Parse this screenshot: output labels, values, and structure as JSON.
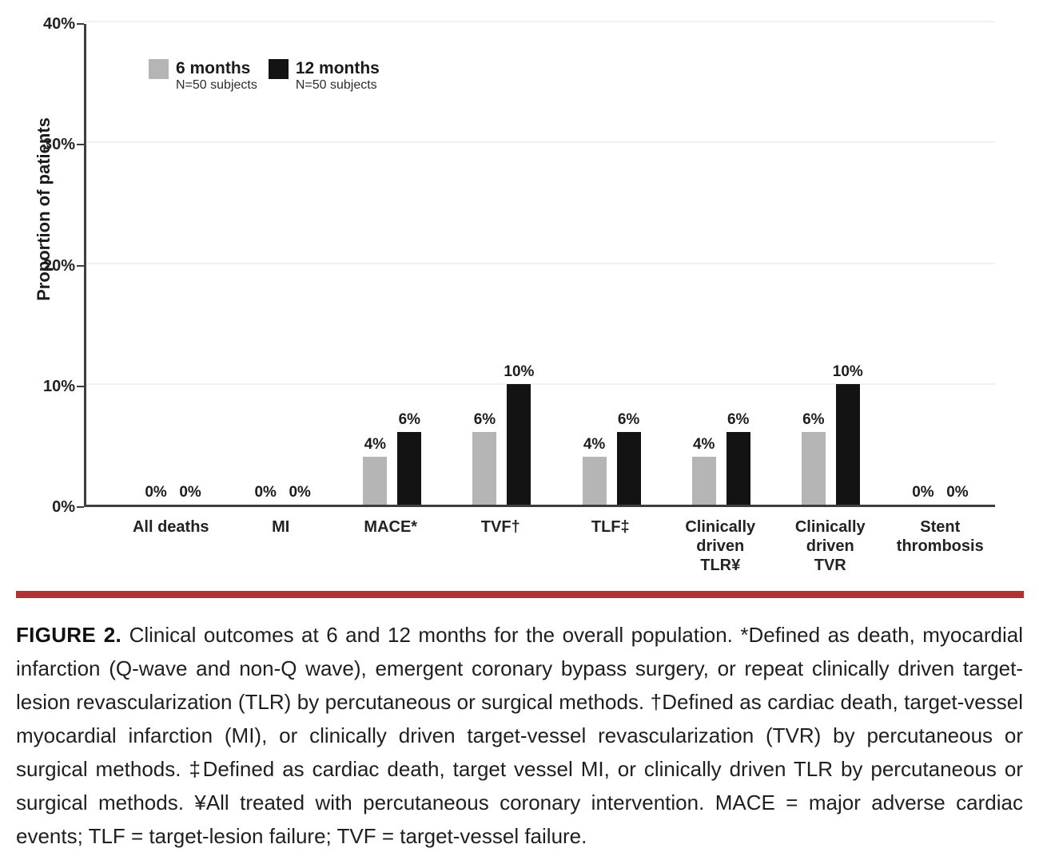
{
  "figure": {
    "caption_label": "FIGURE 2.",
    "caption_text": "Clinical outcomes at 6 and 12 months for the overall population. *Defined as death, myocardial infarction (Q-wave and non-Q wave), emergent coronary bypass surgery, or repeat clinically driven target-lesion revascularization (TLR) by percutaneous or surgical methods. †Defined as cardiac death, target-vessel myocardial infarction (MI), or clinically driven target-vessel revascularization (TVR) by percutaneous or surgical methods. ‡Defined as cardiac death, target vessel MI, or clinically driven TLR by percutaneous or surgical methods. ¥All treated with percutaneous coronary intervention. MACE = major adverse cardiac events; TLF = target-lesion failure; TVF = target-vessel failure.",
    "divider_color": "#b03136"
  },
  "chart_data": {
    "type": "bar",
    "title": "",
    "xlabel": "",
    "ylabel": "Proportion of patients",
    "ylim": [
      0,
      40
    ],
    "yticks": [
      0,
      10,
      20,
      30,
      40
    ],
    "ytick_labels": [
      "0%",
      "10%",
      "20%",
      "30%",
      "40%"
    ],
    "grid": "horizontal light gridlines at each ytick",
    "legend_position": "top-left inside plot",
    "value_label_format": "{value}%",
    "categories": [
      "All deaths",
      "MI",
      "MACE*",
      "TVF†",
      "TLF‡",
      "Clinically driven TLR¥",
      "Clinically driven TVR",
      "Stent thrombosis"
    ],
    "category_label_lines": [
      [
        "All deaths"
      ],
      [
        "MI"
      ],
      [
        "MACE*"
      ],
      [
        "TVF†"
      ],
      [
        "TLF‡"
      ],
      [
        "Clinically driven",
        "TLR¥"
      ],
      [
        "Clinically driven",
        "TVR"
      ],
      [
        "Stent",
        "thrombosis"
      ]
    ],
    "series": [
      {
        "name": "6 months",
        "subtitle": "N=50 subjects",
        "color": "#b5b5b5",
        "values": [
          0,
          0,
          4,
          6,
          4,
          4,
          6,
          0
        ]
      },
      {
        "name": "12 months",
        "subtitle": "N=50 subjects",
        "color": "#131313",
        "values": [
          0,
          0,
          6,
          10,
          6,
          6,
          10,
          0
        ]
      }
    ],
    "axis_color": "#3e3e3e"
  }
}
